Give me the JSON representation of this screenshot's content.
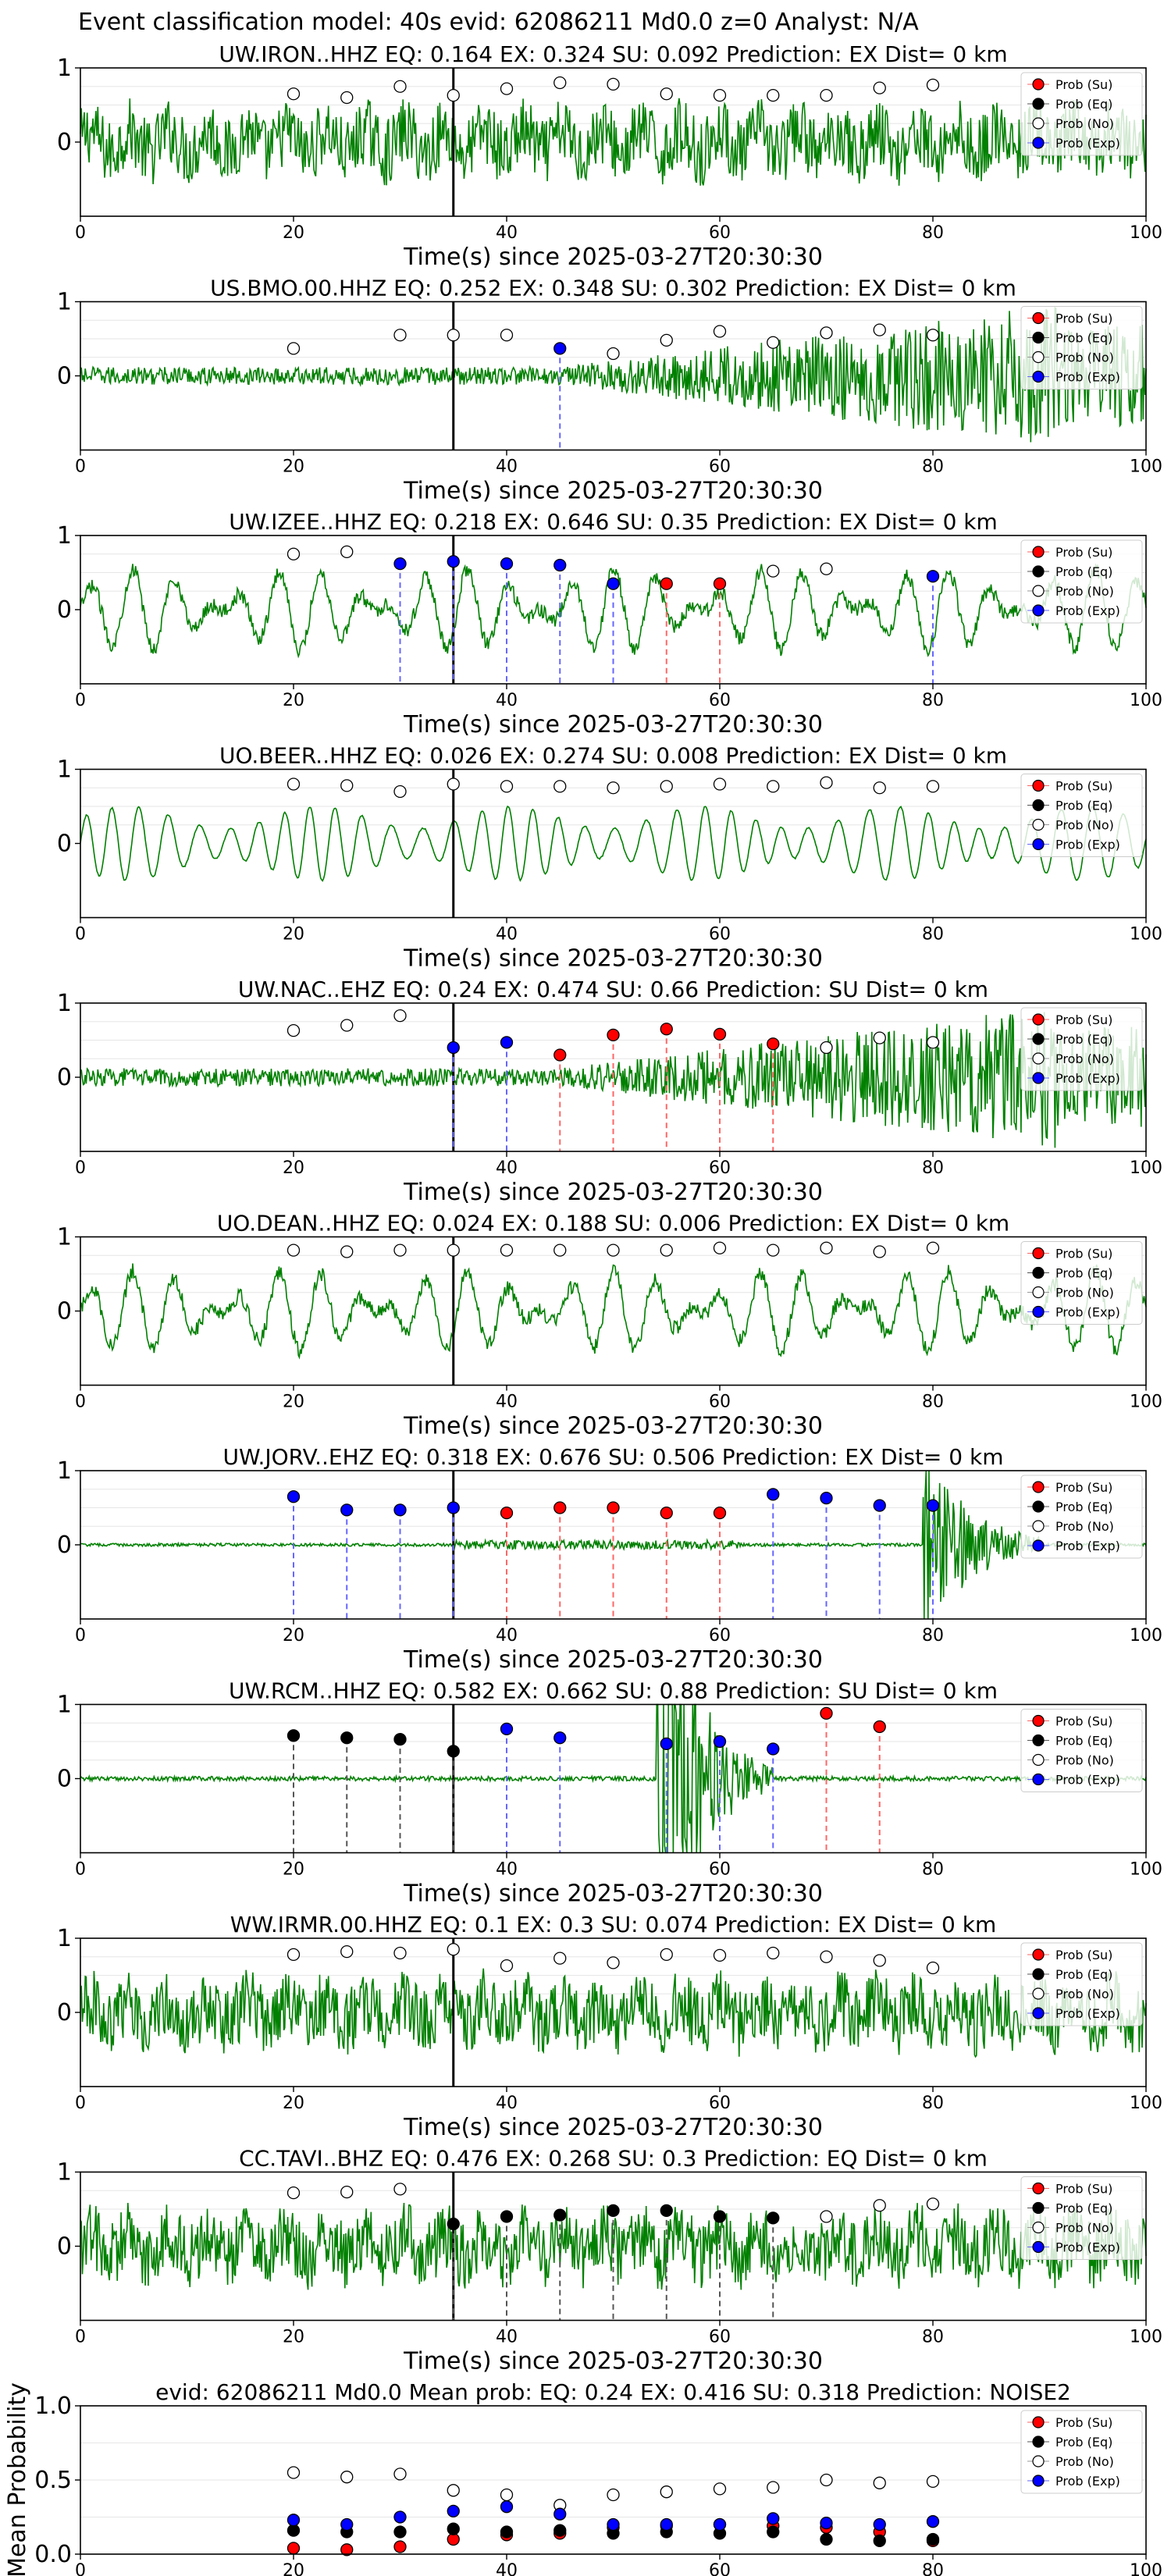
{
  "figure": {
    "suptitle": "Event classification model: 40s evid: 62086211 Md0.0 z=0 Analyst: N/A",
    "xlabel": "Time(s) since 2025-03-27T20:30:30",
    "legend": [
      "Prob (Su)",
      "Prob (Eq)",
      "Prob (No)",
      "Prob (Exp)"
    ],
    "colors": {
      "trace": "#008000",
      "su": "#ff0000",
      "eq": "#000000",
      "no": "#ffffff",
      "exp": "#0000ff",
      "su_line": "#ff6666",
      "eq_line": "#555555",
      "exp_line": "#6666ff",
      "pick_line": "#000000"
    }
  },
  "chart_data": [
    {
      "type": "scatter",
      "station": "UW.IRON..HHZ",
      "title": "UW.IRON..HHZ   EQ: 0.164  EX: 0.324  SU: 0.092   Prediction: EX    Dist= 0 km",
      "xlim": [
        0,
        100
      ],
      "ylim": [
        -1,
        1
      ],
      "yticks": [
        0,
        1
      ],
      "xticks": [
        0,
        20,
        40,
        60,
        80,
        100
      ],
      "pick_time": 35,
      "trace_style": "noisy",
      "points": [
        {
          "x": 20,
          "y": 0.65,
          "class": "no"
        },
        {
          "x": 25,
          "y": 0.6,
          "class": "no"
        },
        {
          "x": 30,
          "y": 0.75,
          "class": "no"
        },
        {
          "x": 35,
          "y": 0.63,
          "class": "no"
        },
        {
          "x": 40,
          "y": 0.72,
          "class": "no"
        },
        {
          "x": 45,
          "y": 0.8,
          "class": "no"
        },
        {
          "x": 50,
          "y": 0.78,
          "class": "no"
        },
        {
          "x": 55,
          "y": 0.65,
          "class": "no"
        },
        {
          "x": 60,
          "y": 0.63,
          "class": "no"
        },
        {
          "x": 65,
          "y": 0.63,
          "class": "no"
        },
        {
          "x": 70,
          "y": 0.63,
          "class": "no"
        },
        {
          "x": 75,
          "y": 0.73,
          "class": "no"
        },
        {
          "x": 80,
          "y": 0.77,
          "class": "no"
        }
      ]
    },
    {
      "type": "scatter",
      "station": "US.BMO.00.HHZ",
      "title": "US.BMO.00.HHZ   EQ: 0.252  EX: 0.348  SU: 0.302   Prediction: EX    Dist= 0 km",
      "xlim": [
        0,
        100
      ],
      "ylim": [
        -1,
        1
      ],
      "yticks": [
        0,
        1
      ],
      "xticks": [
        0,
        20,
        40,
        60,
        80,
        100
      ],
      "pick_time": 35,
      "trace_style": "growing",
      "points": [
        {
          "x": 20,
          "y": 0.37,
          "class": "no"
        },
        {
          "x": 30,
          "y": 0.55,
          "class": "no"
        },
        {
          "x": 35,
          "y": 0.55,
          "class": "no"
        },
        {
          "x": 40,
          "y": 0.55,
          "class": "no"
        },
        {
          "x": 45,
          "y": 0.37,
          "class": "exp"
        },
        {
          "x": 50,
          "y": 0.3,
          "class": "no"
        },
        {
          "x": 55,
          "y": 0.48,
          "class": "no"
        },
        {
          "x": 60,
          "y": 0.6,
          "class": "no"
        },
        {
          "x": 65,
          "y": 0.45,
          "class": "no"
        },
        {
          "x": 70,
          "y": 0.58,
          "class": "no"
        },
        {
          "x": 75,
          "y": 0.62,
          "class": "no"
        },
        {
          "x": 80,
          "y": 0.55,
          "class": "no"
        }
      ]
    },
    {
      "type": "scatter",
      "station": "UW.IZEE..HHZ",
      "title": "UW.IZEE..HHZ   EQ: 0.218  EX: 0.646  SU: 0.35   Prediction: EX    Dist= 0 km",
      "xlim": [
        0,
        100
      ],
      "ylim": [
        -1,
        1
      ],
      "yticks": [
        0,
        1
      ],
      "xticks": [
        0,
        20,
        40,
        60,
        80,
        100
      ],
      "pick_time": 35,
      "trace_style": "wavy",
      "points": [
        {
          "x": 20,
          "y": 0.75,
          "class": "no"
        },
        {
          "x": 25,
          "y": 0.78,
          "class": "no"
        },
        {
          "x": 30,
          "y": 0.62,
          "class": "exp"
        },
        {
          "x": 35,
          "y": 0.65,
          "class": "exp"
        },
        {
          "x": 40,
          "y": 0.62,
          "class": "exp"
        },
        {
          "x": 45,
          "y": 0.6,
          "class": "exp"
        },
        {
          "x": 50,
          "y": 0.35,
          "class": "exp"
        },
        {
          "x": 55,
          "y": 0.35,
          "class": "su"
        },
        {
          "x": 60,
          "y": 0.35,
          "class": "su"
        },
        {
          "x": 65,
          "y": 0.52,
          "class": "no"
        },
        {
          "x": 70,
          "y": 0.55,
          "class": "no"
        },
        {
          "x": 80,
          "y": 0.45,
          "class": "exp"
        }
      ]
    },
    {
      "type": "scatter",
      "station": "UO.BEER..HHZ",
      "title": "UO.BEER..HHZ   EQ: 0.026  EX: 0.274  SU: 0.008   Prediction: EX    Dist= 0 km",
      "xlim": [
        0,
        100
      ],
      "ylim": [
        -1,
        1
      ],
      "yticks": [
        0,
        1
      ],
      "xticks": [
        0,
        20,
        40,
        60,
        80,
        100
      ],
      "pick_time": 35,
      "trace_style": "sine",
      "points": [
        {
          "x": 20,
          "y": 0.8,
          "class": "no"
        },
        {
          "x": 25,
          "y": 0.78,
          "class": "no"
        },
        {
          "x": 30,
          "y": 0.7,
          "class": "no"
        },
        {
          "x": 35,
          "y": 0.8,
          "class": "no"
        },
        {
          "x": 40,
          "y": 0.77,
          "class": "no"
        },
        {
          "x": 45,
          "y": 0.77,
          "class": "no"
        },
        {
          "x": 50,
          "y": 0.75,
          "class": "no"
        },
        {
          "x": 55,
          "y": 0.77,
          "class": "no"
        },
        {
          "x": 60,
          "y": 0.8,
          "class": "no"
        },
        {
          "x": 65,
          "y": 0.77,
          "class": "no"
        },
        {
          "x": 70,
          "y": 0.82,
          "class": "no"
        },
        {
          "x": 75,
          "y": 0.75,
          "class": "no"
        },
        {
          "x": 80,
          "y": 0.77,
          "class": "no"
        }
      ]
    },
    {
      "type": "scatter",
      "station": "UW.NAC..EHZ",
      "title": "UW.NAC..EHZ   EQ: 0.24  EX: 0.474  SU: 0.66   Prediction: SU    Dist= 0 km",
      "xlim": [
        0,
        100
      ],
      "ylim": [
        -1,
        1
      ],
      "yticks": [
        0,
        1
      ],
      "xticks": [
        0,
        20,
        40,
        60,
        80,
        100
      ],
      "pick_time": 35,
      "trace_style": "growing",
      "points": [
        {
          "x": 20,
          "y": 0.63,
          "class": "no"
        },
        {
          "x": 25,
          "y": 0.7,
          "class": "no"
        },
        {
          "x": 30,
          "y": 0.83,
          "class": "no"
        },
        {
          "x": 35,
          "y": 0.4,
          "class": "exp"
        },
        {
          "x": 40,
          "y": 0.47,
          "class": "exp"
        },
        {
          "x": 45,
          "y": 0.3,
          "class": "su"
        },
        {
          "x": 50,
          "y": 0.57,
          "class": "su"
        },
        {
          "x": 55,
          "y": 0.65,
          "class": "su"
        },
        {
          "x": 60,
          "y": 0.58,
          "class": "su"
        },
        {
          "x": 65,
          "y": 0.45,
          "class": "su"
        },
        {
          "x": 70,
          "y": 0.4,
          "class": "no"
        },
        {
          "x": 75,
          "y": 0.53,
          "class": "no"
        },
        {
          "x": 80,
          "y": 0.47,
          "class": "no"
        }
      ]
    },
    {
      "type": "scatter",
      "station": "UO.DEAN..HHZ",
      "title": "UO.DEAN..HHZ   EQ: 0.024  EX: 0.188  SU: 0.006   Prediction: EX    Dist= 0 km",
      "xlim": [
        0,
        100
      ],
      "ylim": [
        -1,
        1
      ],
      "yticks": [
        0,
        1
      ],
      "xticks": [
        0,
        20,
        40,
        60,
        80,
        100
      ],
      "pick_time": 35,
      "trace_style": "wavy",
      "points": [
        {
          "x": 20,
          "y": 0.82,
          "class": "no"
        },
        {
          "x": 25,
          "y": 0.8,
          "class": "no"
        },
        {
          "x": 30,
          "y": 0.82,
          "class": "no"
        },
        {
          "x": 35,
          "y": 0.82,
          "class": "no"
        },
        {
          "x": 40,
          "y": 0.82,
          "class": "no"
        },
        {
          "x": 45,
          "y": 0.82,
          "class": "no"
        },
        {
          "x": 50,
          "y": 0.82,
          "class": "no"
        },
        {
          "x": 55,
          "y": 0.82,
          "class": "no"
        },
        {
          "x": 60,
          "y": 0.85,
          "class": "no"
        },
        {
          "x": 65,
          "y": 0.82,
          "class": "no"
        },
        {
          "x": 70,
          "y": 0.85,
          "class": "no"
        },
        {
          "x": 75,
          "y": 0.8,
          "class": "no"
        },
        {
          "x": 80,
          "y": 0.85,
          "class": "no"
        }
      ]
    },
    {
      "type": "scatter",
      "station": "UW.JORV..EHZ",
      "title": "UW.JORV..EHZ   EQ: 0.318  EX: 0.676  SU: 0.506   Prediction: EX    Dist= 0 km",
      "xlim": [
        0,
        100
      ],
      "ylim": [
        -1,
        1
      ],
      "yticks": [
        0,
        1
      ],
      "xticks": [
        0,
        20,
        40,
        60,
        80,
        100
      ],
      "pick_time": 35,
      "trace_style": "quiet_burst",
      "points": [
        {
          "x": 20,
          "y": 0.65,
          "class": "exp"
        },
        {
          "x": 25,
          "y": 0.47,
          "class": "exp"
        },
        {
          "x": 30,
          "y": 0.47,
          "class": "exp"
        },
        {
          "x": 35,
          "y": 0.5,
          "class": "exp"
        },
        {
          "x": 40,
          "y": 0.43,
          "class": "su"
        },
        {
          "x": 45,
          "y": 0.5,
          "class": "su"
        },
        {
          "x": 50,
          "y": 0.5,
          "class": "su"
        },
        {
          "x": 55,
          "y": 0.43,
          "class": "su"
        },
        {
          "x": 60,
          "y": 0.43,
          "class": "su"
        },
        {
          "x": 65,
          "y": 0.68,
          "class": "exp"
        },
        {
          "x": 70,
          "y": 0.63,
          "class": "exp"
        },
        {
          "x": 75,
          "y": 0.53,
          "class": "exp"
        },
        {
          "x": 80,
          "y": 0.53,
          "class": "exp"
        }
      ]
    },
    {
      "type": "scatter",
      "station": "UW.RCM..HHZ",
      "title": "UW.RCM..HHZ   EQ: 0.582  EX: 0.662  SU: 0.88   Prediction: SU    Dist= 0 km",
      "xlim": [
        0,
        100
      ],
      "ylim": [
        -1,
        1
      ],
      "yticks": [
        0,
        1
      ],
      "xticks": [
        0,
        20,
        40,
        60,
        80,
        100
      ],
      "pick_time": 35,
      "trace_style": "quiet_mid_burst",
      "points": [
        {
          "x": 20,
          "y": 0.58,
          "class": "eq"
        },
        {
          "x": 25,
          "y": 0.55,
          "class": "eq"
        },
        {
          "x": 30,
          "y": 0.53,
          "class": "eq"
        },
        {
          "x": 35,
          "y": 0.37,
          "class": "eq"
        },
        {
          "x": 40,
          "y": 0.67,
          "class": "exp"
        },
        {
          "x": 45,
          "y": 0.55,
          "class": "exp"
        },
        {
          "x": 55,
          "y": 0.47,
          "class": "exp"
        },
        {
          "x": 60,
          "y": 0.5,
          "class": "exp"
        },
        {
          "x": 65,
          "y": 0.4,
          "class": "exp"
        },
        {
          "x": 70,
          "y": 0.88,
          "class": "su"
        },
        {
          "x": 75,
          "y": 0.7,
          "class": "su"
        }
      ]
    },
    {
      "type": "scatter",
      "station": "WW.IRMR.00.HHZ",
      "title": "WW.IRMR.00.HHZ   EQ: 0.1  EX: 0.3  SU: 0.074   Prediction: EX    Dist= 0 km",
      "xlim": [
        0,
        100
      ],
      "ylim": [
        -1,
        1
      ],
      "yticks": [
        0,
        1
      ],
      "xticks": [
        0,
        20,
        40,
        60,
        80,
        100
      ],
      "pick_time": 35,
      "trace_style": "noisy",
      "points": [
        {
          "x": 20,
          "y": 0.78,
          "class": "no"
        },
        {
          "x": 25,
          "y": 0.82,
          "class": "no"
        },
        {
          "x": 30,
          "y": 0.8,
          "class": "no"
        },
        {
          "x": 35,
          "y": 0.85,
          "class": "no"
        },
        {
          "x": 40,
          "y": 0.63,
          "class": "no"
        },
        {
          "x": 45,
          "y": 0.73,
          "class": "no"
        },
        {
          "x": 50,
          "y": 0.67,
          "class": "no"
        },
        {
          "x": 55,
          "y": 0.78,
          "class": "no"
        },
        {
          "x": 60,
          "y": 0.77,
          "class": "no"
        },
        {
          "x": 65,
          "y": 0.8,
          "class": "no"
        },
        {
          "x": 70,
          "y": 0.75,
          "class": "no"
        },
        {
          "x": 75,
          "y": 0.7,
          "class": "no"
        },
        {
          "x": 80,
          "y": 0.6,
          "class": "no"
        }
      ]
    },
    {
      "type": "scatter",
      "station": "CC.TAVI..BHZ",
      "title": "CC.TAVI..BHZ   EQ: 0.476  EX: 0.268  SU: 0.3   Prediction: EQ    Dist= 0 km",
      "xlim": [
        0,
        100
      ],
      "ylim": [
        -1,
        1
      ],
      "yticks": [
        0,
        1
      ],
      "xticks": [
        0,
        20,
        40,
        60,
        80,
        100
      ],
      "pick_time": 35,
      "trace_style": "noisy",
      "points": [
        {
          "x": 20,
          "y": 0.72,
          "class": "no"
        },
        {
          "x": 25,
          "y": 0.73,
          "class": "no"
        },
        {
          "x": 30,
          "y": 0.77,
          "class": "no"
        },
        {
          "x": 35,
          "y": 0.3,
          "class": "eq"
        },
        {
          "x": 40,
          "y": 0.4,
          "class": "eq"
        },
        {
          "x": 45,
          "y": 0.42,
          "class": "eq"
        },
        {
          "x": 50,
          "y": 0.48,
          "class": "eq"
        },
        {
          "x": 55,
          "y": 0.48,
          "class": "eq"
        },
        {
          "x": 60,
          "y": 0.4,
          "class": "eq"
        },
        {
          "x": 65,
          "y": 0.38,
          "class": "eq"
        },
        {
          "x": 70,
          "y": 0.4,
          "class": "no"
        },
        {
          "x": 75,
          "y": 0.55,
          "class": "no"
        },
        {
          "x": 80,
          "y": 0.57,
          "class": "no"
        }
      ]
    },
    {
      "type": "scatter",
      "title": "evid: 62086211  Md0.0   Mean prob:   EQ: 0.24  EX: 0.416  SU: 0.318   Prediction: NOISE2",
      "ylabel": "Mean Probability",
      "xlim": [
        0,
        100
      ],
      "ylim": [
        0,
        1
      ],
      "yticks": [
        0,
        0.5,
        1
      ],
      "ytick_labels": [
        "0.0",
        "0.5",
        "1.0"
      ],
      "xticks": [
        0,
        20,
        40,
        60,
        80,
        100
      ],
      "x": [
        20,
        25,
        30,
        35,
        40,
        45,
        50,
        55,
        60,
        65,
        70,
        75,
        80
      ],
      "series": [
        {
          "name": "Prob (Su)",
          "class": "su",
          "values": [
            0.04,
            0.03,
            0.05,
            0.1,
            0.13,
            0.14,
            0.18,
            0.19,
            0.2,
            0.19,
            0.18,
            0.15,
            0.09
          ]
        },
        {
          "name": "Prob (Eq)",
          "class": "eq",
          "values": [
            0.16,
            0.15,
            0.15,
            0.17,
            0.15,
            0.16,
            0.14,
            0.15,
            0.14,
            0.15,
            0.1,
            0.09,
            0.1
          ]
        },
        {
          "name": "Prob (No)",
          "class": "no",
          "values": [
            0.55,
            0.52,
            0.54,
            0.43,
            0.4,
            0.33,
            0.4,
            0.42,
            0.44,
            0.45,
            0.5,
            0.48,
            0.49
          ]
        },
        {
          "name": "Prob (Exp)",
          "class": "exp",
          "values": [
            0.23,
            0.2,
            0.25,
            0.29,
            0.32,
            0.27,
            0.2,
            0.2,
            0.2,
            0.24,
            0.21,
            0.2,
            0.22
          ]
        }
      ]
    }
  ]
}
